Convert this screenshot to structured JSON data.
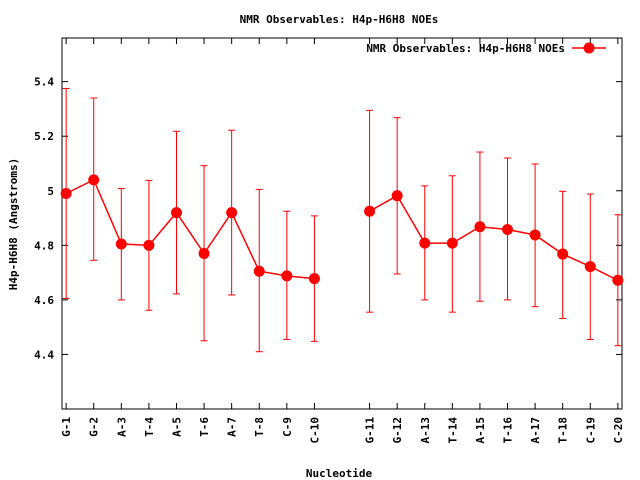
{
  "chart_data": {
    "type": "line",
    "title": "NMR Observables: H4p-H6H8 NOEs",
    "xlabel": "Nucleotide",
    "ylabel": "H4p-H6H8 (Angstroms)",
    "ylim": [
      4.2,
      5.56
    ],
    "yticks": [
      4.4,
      4.6,
      4.8,
      5,
      5.2,
      5.4
    ],
    "ytick_labels": [
      "4.4",
      "4.6",
      "4.8",
      "5",
      "5.2",
      "5.4"
    ],
    "categories": [
      "G-1",
      "G-2",
      "A-3",
      "T-4",
      "A-5",
      "T-6",
      "A-7",
      "T-8",
      "C-9",
      "C-10",
      "G-11",
      "G-12",
      "A-13",
      "T-14",
      "A-15",
      "T-16",
      "A-17",
      "T-18",
      "C-19",
      "C-20"
    ],
    "x_positions": [
      1,
      2,
      3,
      4,
      5,
      6,
      7,
      8,
      9,
      10,
      12,
      13,
      14,
      15,
      16,
      17,
      18,
      19,
      20,
      21
    ],
    "xlim": [
      0.85,
      21.15
    ],
    "grid": false,
    "legend": "top-right",
    "series": [
      {
        "name": "NMR Observables: H4p-H6H8 NOEs",
        "color": "#ff0000",
        "marker": "circle",
        "segments": [
          [
            0,
            9
          ],
          [
            10,
            19
          ]
        ],
        "values": [
          4.99,
          5.04,
          4.805,
          4.8,
          4.92,
          4.77,
          4.92,
          4.705,
          4.688,
          4.678,
          4.925,
          4.982,
          4.808,
          4.808,
          4.868,
          4.858,
          4.838,
          4.768,
          4.722,
          4.672
        ],
        "lower": [
          4.605,
          4.745,
          4.6,
          4.562,
          4.622,
          4.45,
          4.618,
          4.41,
          4.455,
          4.448,
          4.555,
          4.695,
          4.6,
          4.555,
          4.595,
          4.6,
          4.575,
          4.532,
          4.455,
          4.432
        ],
        "upper": [
          5.375,
          5.34,
          5.008,
          5.038,
          5.218,
          5.092,
          5.222,
          5.005,
          4.925,
          4.908,
          5.295,
          5.268,
          5.018,
          5.055,
          5.142,
          5.12,
          5.098,
          4.998,
          4.988,
          4.912
        ]
      }
    ]
  }
}
